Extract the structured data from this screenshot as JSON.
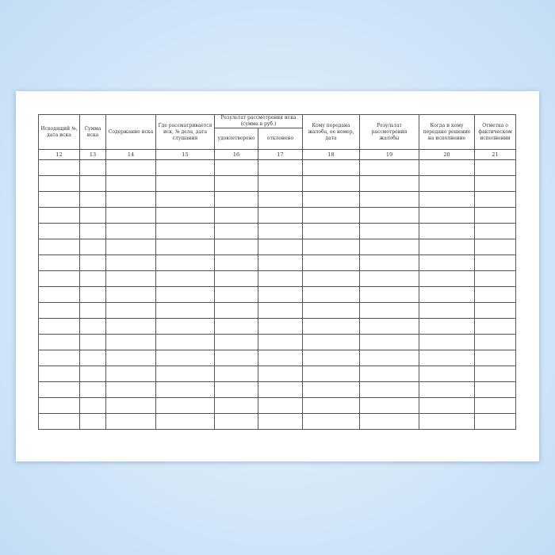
{
  "table": {
    "headers": [
      "Исходящий №, дата иска",
      "Сумма иска",
      "Содержание иска",
      "Где рассматривается иск, № дела, дата слушания",
      "Результат рассмотрения иска (сумма в руб.)",
      "Кому передана жалоба, ее номер, дата",
      "Результат рассмотрения жалобы",
      "Когда и кому передано решение на исполнение",
      "Отметка о фактическом исполнении"
    ],
    "subheaders": [
      "удовлетворено",
      "отклонено"
    ],
    "column_numbers": [
      "12",
      "13",
      "14",
      "15",
      "16",
      "17",
      "18",
      "19",
      "20",
      "21"
    ],
    "empty_rows": 17
  }
}
